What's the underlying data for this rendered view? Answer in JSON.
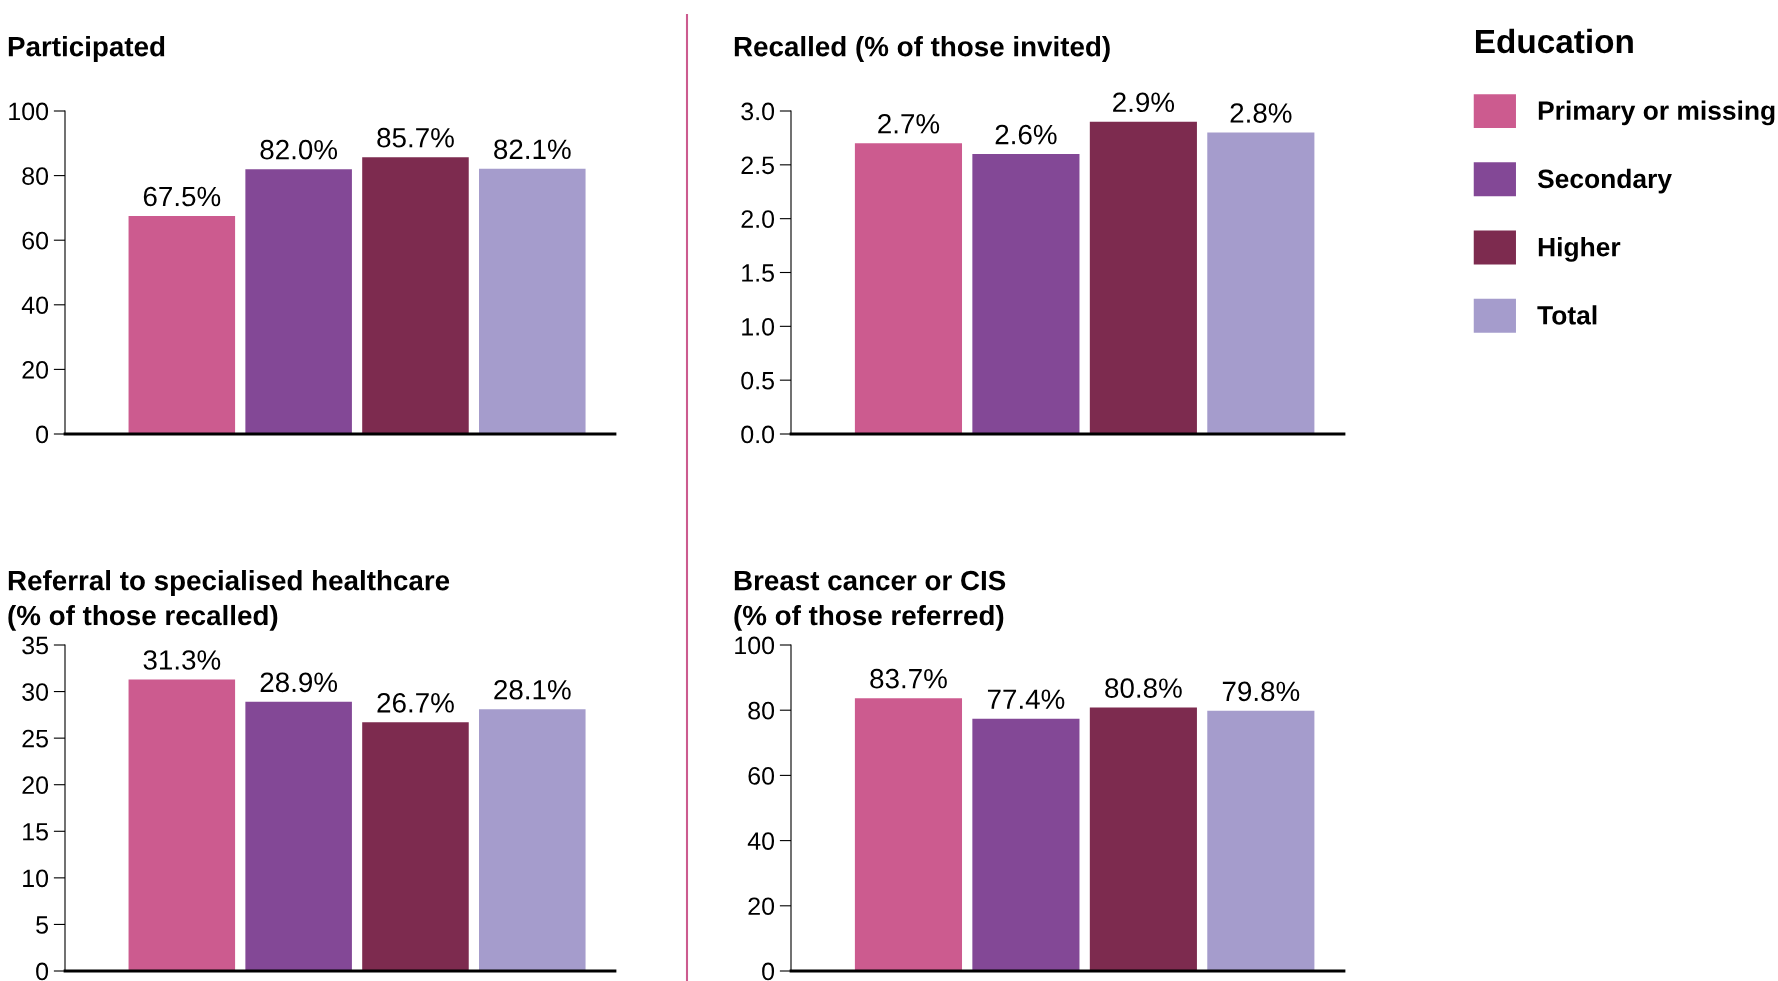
{
  "chart_data": [
    {
      "type": "bar",
      "title": "Participated",
      "categories": [
        null
      ],
      "ylim": [
        0,
        100
      ],
      "yticks": [
        0,
        20,
        40,
        60,
        80,
        100
      ],
      "grid": false,
      "legend": false,
      "tick_labels": "y",
      "series": [
        {
          "color": "#cc5b8f",
          "values": [
            67.5
          ],
          "value_labels": [
            "67.5%"
          ]
        },
        {
          "color": "#834896",
          "values": [
            82.0
          ],
          "value_labels": [
            "82.0%"
          ]
        },
        {
          "color": "#7d2b4f",
          "values": [
            85.7
          ],
          "value_labels": [
            "85.7%"
          ]
        },
        {
          "color": "#a59ccc",
          "values": [
            82.1
          ],
          "value_labels": [
            "82.1%"
          ]
        }
      ]
    },
    {
      "type": "bar",
      "title": "Recalled (% of those invited)",
      "categories": [
        null
      ],
      "ylim": [
        0,
        3.0
      ],
      "yticks": [
        {
          "value": 0,
          "label": "0.0"
        },
        {
          "value": 0.5,
          "label": "0.5"
        },
        {
          "value": 1,
          "label": "1.0"
        },
        {
          "value": 1.5,
          "label": "1.5"
        },
        {
          "value": 2,
          "label": "2.0"
        },
        {
          "value": 2.5,
          "label": "2.5"
        },
        {
          "value": 3,
          "label": "3.0"
        }
      ],
      "grid": false,
      "legend": "right",
      "legend_title": "Education",
      "tick_labels": "y",
      "series": [
        {
          "name": "Primary or missing",
          "color": "#cc5b8f",
          "values": [
            2.7
          ],
          "value_labels": [
            "2.7%"
          ]
        },
        {
          "name": "Secondary",
          "color": "#834896",
          "values": [
            2.6
          ],
          "value_labels": [
            "2.6%"
          ]
        },
        {
          "name": "Higher",
          "color": "#7d2b4f",
          "values": [
            2.9
          ],
          "value_labels": [
            "2.9%"
          ]
        },
        {
          "name": "Total",
          "color": "#a59ccc",
          "values": [
            2.8
          ],
          "value_labels": [
            "2.8%"
          ]
        }
      ]
    },
    {
      "type": "bar",
      "title": "Referral to specialised healthcare\n(% of those recalled)",
      "categories": [
        null
      ],
      "ylim": [
        0,
        35
      ],
      "yticks": [
        0,
        5,
        10,
        15,
        20,
        25,
        30,
        35
      ],
      "grid": false,
      "legend": false,
      "tick_labels": "y",
      "series": [
        {
          "color": "#cc5b8f",
          "values": [
            31.3
          ],
          "value_labels": [
            "31.3%"
          ]
        },
        {
          "color": "#834896",
          "values": [
            28.9
          ],
          "value_labels": [
            "28.9%"
          ]
        },
        {
          "color": "#7d2b4f",
          "values": [
            26.7
          ],
          "value_labels": [
            "26.7%"
          ]
        },
        {
          "color": "#a59ccc",
          "values": [
            28.1
          ],
          "value_labels": [
            "28.1%"
          ]
        }
      ]
    },
    {
      "type": "bar",
      "title": "Breast cancer or CIS\n(% of those referred)",
      "categories": [
        null
      ],
      "ylim": [
        0,
        100
      ],
      "yticks": [
        0,
        20,
        40,
        60,
        80,
        100
      ],
      "grid": false,
      "legend": false,
      "tick_labels": "y",
      "series": [
        {
          "color": "#cc5b8f",
          "values": [
            83.7
          ],
          "value_labels": [
            "83.7%"
          ]
        },
        {
          "color": "#834896",
          "values": [
            77.4
          ],
          "value_labels": [
            "77.4%"
          ]
        },
        {
          "color": "#7d2b4f",
          "values": [
            80.8
          ],
          "value_labels": [
            "80.8%"
          ]
        },
        {
          "color": "#a59ccc",
          "values": [
            79.8
          ],
          "value_labels": [
            "79.8%"
          ]
        }
      ]
    }
  ]
}
